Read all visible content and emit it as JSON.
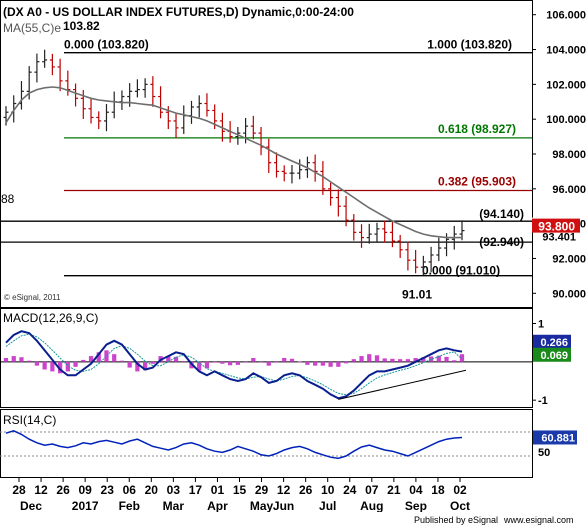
{
  "header": {
    "title": "(DX A0 - US DOLLAR INDEX FUTURES,D) Dynamic,0:00-24:00",
    "ma_label": "MA(55,C)e",
    "high_value": "103.82",
    "watermark": "© eSignal, 2011",
    "left_cut_label": "88"
  },
  "footer": {
    "published": "Published by eSignal",
    "website": "www.esignal.com"
  },
  "colors": {
    "price_bar": "#222222",
    "down_bar": "#bb0000",
    "ma": "#6e6e6e",
    "fib_green": "#007700",
    "fib_red": "#990000",
    "macd_line": "#0a1f8f",
    "macd_signal": "#1a9a9a",
    "macd_hist": "#cc44cc",
    "rsi": "#0022bb",
    "price_tag": "#d01010",
    "green_tag": "#1a8a1a",
    "blue_tag": "#1a2aa0",
    "rsi_tag": "#1a3aaa"
  },
  "chart_data": [
    {
      "type": "line",
      "name": "price",
      "title": "(DX A0 - US DOLLAR INDEX FUTURES,D) Dynamic,0:00-24:00",
      "ylim": [
        89.5,
        106.5
      ],
      "yticks": [
        90.0,
        92.0,
        94.0,
        96.0,
        98.0,
        100.0,
        102.0,
        104.0,
        106.0
      ],
      "ytick_labels": [
        "90.000",
        "92.000",
        "94.000",
        "96.000",
        "98.000",
        "100.000",
        "102.000",
        "104.000",
        "106.000"
      ],
      "x_day_labels": [
        "28",
        "12",
        "26",
        "09",
        "23",
        "06",
        "20",
        "03",
        "17",
        "01",
        "15",
        "29",
        "12",
        "26",
        "10",
        "24",
        "07",
        "21",
        "04",
        "18",
        "02"
      ],
      "x_month_labels": [
        "Dec",
        "2017",
        "Feb",
        "Mar",
        "Apr",
        "May",
        "Jun",
        "Jul",
        "Aug",
        "Sep",
        "Oct"
      ],
      "close": [
        100.4,
        100.9,
        101.6,
        102.7,
        103.3,
        103.4,
        103.0,
        102.2,
        101.7,
        101.2,
        100.6,
        100.1,
        99.9,
        100.4,
        101.0,
        101.3,
        101.6,
        101.7,
        102.0,
        101.3,
        100.4,
        99.9,
        99.5,
        100.2,
        100.7,
        100.9,
        100.5,
        99.9,
        99.3,
        99.0,
        99.2,
        99.6,
        99.2,
        98.4,
        97.5,
        97.0,
        96.9,
        96.9,
        97.1,
        97.5,
        97.0,
        96.0,
        95.5,
        95.0,
        94.2,
        93.5,
        93.2,
        93.4,
        93.7,
        93.5,
        93.0,
        92.5,
        91.9,
        91.5,
        91.8,
        92.2,
        92.6,
        93.1,
        93.4,
        93.6
      ],
      "ma": [
        99.8,
        100.5,
        101.1,
        101.5,
        101.7,
        101.8,
        101.85,
        101.8,
        101.65,
        101.5,
        101.35,
        101.2,
        101.1,
        101.05,
        101.0,
        100.95,
        100.95,
        100.9,
        100.85,
        100.8,
        100.65,
        100.5,
        100.35,
        100.25,
        100.15,
        100.05,
        99.9,
        99.7,
        99.5,
        99.3,
        99.1,
        98.9,
        98.7,
        98.5,
        98.25,
        98.0,
        97.8,
        97.6,
        97.4,
        97.2,
        96.95,
        96.7,
        96.4,
        96.1,
        95.8,
        95.5,
        95.2,
        94.9,
        94.65,
        94.4,
        94.15,
        93.95,
        93.75,
        93.55,
        93.4,
        93.3,
        93.25,
        93.2,
        93.2,
        93.2
      ],
      "fib_levels": [
        {
          "label": "0.000 (103.820)",
          "value": 103.82
        },
        {
          "label": "1.000 (103.820)",
          "value": 103.82
        },
        {
          "label": "0.618 (98.927)",
          "value": 98.927
        },
        {
          "label": "0.382 (95.903)",
          "value": 95.903
        },
        {
          "label": "(94.140)",
          "value": 94.14
        },
        {
          "label": "(92.940)",
          "value": 92.94
        },
        {
          "label": "0.000 (91.010)",
          "value": 91.01
        }
      ],
      "low_label": "91.01",
      "last_price_tag": "93.800",
      "hidden_tag": "93.401"
    },
    {
      "type": "line",
      "name": "macd",
      "title": "MACD(12,26,9,C)",
      "ylim": [
        -1.1,
        1.3
      ],
      "yticks": [
        1,
        -1
      ],
      "ytick_labels": [
        "1",
        "-1"
      ],
      "macd": [
        0.5,
        0.7,
        0.8,
        0.75,
        0.55,
        0.3,
        0.05,
        -0.2,
        -0.35,
        -0.35,
        -0.2,
        -0.05,
        0.2,
        0.45,
        0.55,
        0.45,
        0.2,
        -0.05,
        -0.2,
        -0.15,
        0.05,
        0.15,
        0.25,
        0.2,
        -0.05,
        -0.25,
        -0.35,
        -0.25,
        -0.35,
        -0.45,
        -0.5,
        -0.45,
        -0.3,
        -0.4,
        -0.55,
        -0.5,
        -0.35,
        -0.3,
        -0.35,
        -0.5,
        -0.6,
        -0.7,
        -0.85,
        -0.95,
        -0.9,
        -0.75,
        -0.55,
        -0.35,
        -0.25,
        -0.25,
        -0.2,
        -0.15,
        -0.1,
        0.0,
        0.1,
        0.2,
        0.3,
        0.35,
        0.3,
        0.266
      ],
      "signal": [
        0.4,
        0.55,
        0.68,
        0.72,
        0.65,
        0.5,
        0.3,
        0.1,
        -0.1,
        -0.22,
        -0.25,
        -0.2,
        -0.05,
        0.15,
        0.35,
        0.42,
        0.35,
        0.2,
        0.02,
        -0.1,
        -0.1,
        0.0,
        0.12,
        0.18,
        0.12,
        -0.02,
        -0.18,
        -0.25,
        -0.3,
        -0.36,
        -0.42,
        -0.45,
        -0.4,
        -0.38,
        -0.45,
        -0.5,
        -0.45,
        -0.38,
        -0.36,
        -0.42,
        -0.5,
        -0.6,
        -0.72,
        -0.82,
        -0.86,
        -0.82,
        -0.7,
        -0.55,
        -0.42,
        -0.34,
        -0.28,
        -0.22,
        -0.17,
        -0.1,
        -0.02,
        0.06,
        0.14,
        0.22,
        0.26,
        0.069
      ],
      "histogram": [
        0.1,
        0.15,
        0.12,
        0.03,
        -0.1,
        -0.2,
        -0.25,
        -0.3,
        -0.25,
        -0.13,
        0.05,
        0.15,
        0.25,
        0.3,
        0.2,
        0.03,
        -0.15,
        -0.25,
        -0.22,
        -0.05,
        0.15,
        0.15,
        0.13,
        0.02,
        -0.17,
        -0.23,
        -0.17,
        0.0,
        -0.05,
        -0.09,
        -0.08,
        0.0,
        0.1,
        -0.02,
        -0.1,
        0.0,
        0.1,
        0.08,
        0.01,
        -0.08,
        -0.1,
        -0.1,
        -0.13,
        -0.13,
        -0.04,
        0.07,
        0.15,
        0.2,
        0.17,
        0.09,
        0.08,
        0.07,
        0.07,
        0.1,
        0.12,
        0.14,
        0.16,
        0.13,
        0.04,
        0.2
      ],
      "macd_tag": "0.266",
      "signal_tag": "0.069"
    },
    {
      "type": "line",
      "name": "rsi",
      "title": "RSI(14,C)",
      "ylim": [
        0,
        100
      ],
      "yticks": [
        50
      ],
      "ytick_labels": [
        "50"
      ],
      "values": [
        68,
        72,
        66,
        58,
        52,
        48,
        50,
        46,
        44,
        47,
        52,
        50,
        54,
        56,
        53,
        50,
        55,
        58,
        52,
        46,
        43,
        40,
        44,
        50,
        52,
        48,
        42,
        38,
        36,
        40,
        46,
        42,
        38,
        32,
        30,
        34,
        40,
        44,
        46,
        42,
        36,
        32,
        28,
        26,
        30,
        38,
        45,
        48,
        44,
        40,
        38,
        34,
        30,
        36,
        42,
        48,
        54,
        58,
        60,
        60.881
      ],
      "rsi_tag": "60.881"
    }
  ]
}
